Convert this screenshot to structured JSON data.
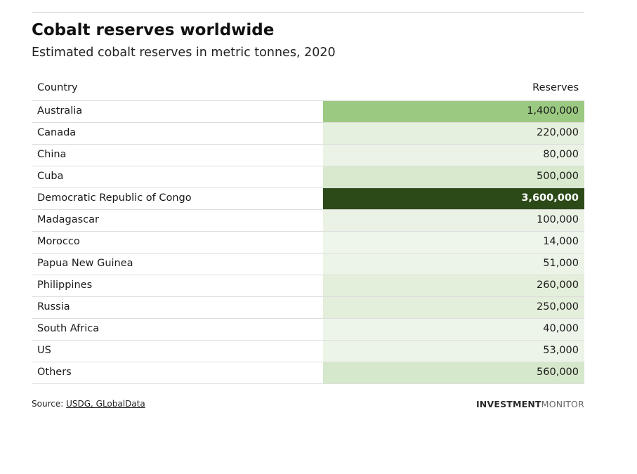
{
  "title": "Cobalt reserves worldwide",
  "subtitle": "Estimated cobalt reserves in metric tonnes, 2020",
  "table": {
    "header": {
      "country": "Country",
      "reserves": "Reserves"
    }
  },
  "chart_data": {
    "type": "table",
    "title": "Cobalt reserves worldwide",
    "subtitle": "Estimated cobalt reserves in metric tonnes, 2020",
    "columns": [
      "Country",
      "Reserves"
    ],
    "rows": [
      {
        "country": "Australia",
        "value": 1400000,
        "display": "1,400,000",
        "fill": "#9bc982",
        "text_color": "#1a1a1a"
      },
      {
        "country": "Canada",
        "value": 220000,
        "display": "220,000",
        "fill": "#e6f0de",
        "text_color": "#1a1a1a"
      },
      {
        "country": "China",
        "value": 80000,
        "display": "80,000",
        "fill": "#ebf3e6",
        "text_color": "#1a1a1a"
      },
      {
        "country": "Cuba",
        "value": 500000,
        "display": "500,000",
        "fill": "#d8e9cd",
        "text_color": "#1a1a1a"
      },
      {
        "country": "Democratic Republic of Congo",
        "value": 3600000,
        "display": "3,600,000",
        "fill": "#2c4a18",
        "text_color": "#ffffff"
      },
      {
        "country": "Madagascar",
        "value": 100000,
        "display": "100,000",
        "fill": "#eaf2e5",
        "text_color": "#1a1a1a"
      },
      {
        "country": "Morocco",
        "value": 14000,
        "display": "14,000",
        "fill": "#eef5ea",
        "text_color": "#1a1a1a"
      },
      {
        "country": "Papua New Guinea",
        "value": 51000,
        "display": "51,000",
        "fill": "#ecf4e8",
        "text_color": "#1a1a1a"
      },
      {
        "country": "Philippines",
        "value": 260000,
        "display": "260,000",
        "fill": "#e3eedb",
        "text_color": "#1a1a1a"
      },
      {
        "country": "Russia",
        "value": 250000,
        "display": "250,000",
        "fill": "#e3eedb",
        "text_color": "#1a1a1a"
      },
      {
        "country": "South Africa",
        "value": 40000,
        "display": "40,000",
        "fill": "#edf4e9",
        "text_color": "#1a1a1a"
      },
      {
        "country": "US",
        "value": 53000,
        "display": "53,000",
        "fill": "#ecf4e8",
        "text_color": "#1a1a1a"
      },
      {
        "country": "Others",
        "value": 560000,
        "display": "560,000",
        "fill": "#d6e8cb",
        "text_color": "#1a1a1a"
      }
    ]
  },
  "source": {
    "prefix": "Source: ",
    "link_text": "USDG, GLobalData"
  },
  "logo": {
    "part1": "INVESTMENT",
    "part2": "MONITOR"
  }
}
